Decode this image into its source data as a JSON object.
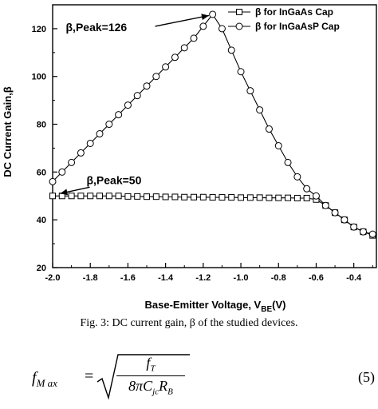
{
  "chart_data": {
    "type": "line",
    "xlabel_main": "Base-Emitter Voltage, V",
    "xlabel_sub": "BE",
    "xlabel_tail": "(V)",
    "ylabel": "DC Current Gain,β",
    "xlim": [
      -2.0,
      -0.28
    ],
    "ylim": [
      20,
      130
    ],
    "x_ticks": [
      -2.0,
      -1.8,
      -1.6,
      -1.4,
      -1.2,
      -1.0,
      -0.8,
      -0.6,
      -0.4
    ],
    "x_tick_labels": [
      "-2.0",
      "-1.8",
      "-1.6",
      "-1.4",
      "-1.2",
      "-1.0",
      "-0.8",
      "-0.6",
      "-0.4"
    ],
    "y_ticks": [
      20,
      40,
      60,
      80,
      100,
      120
    ],
    "y_tick_labels": [
      "20",
      "40",
      "60",
      "80",
      "100",
      "120"
    ],
    "legend_position": "top-right",
    "series": [
      {
        "name": "β for InGaAs Cap",
        "marker": "square",
        "x": [
          -2.0,
          -1.95,
          -1.9,
          -1.85,
          -1.8,
          -1.75,
          -1.7,
          -1.65,
          -1.6,
          -1.55,
          -1.5,
          -1.45,
          -1.4,
          -1.35,
          -1.3,
          -1.25,
          -1.2,
          -1.15,
          -1.1,
          -1.05,
          -1.0,
          -0.95,
          -0.9,
          -0.85,
          -0.8,
          -0.75,
          -0.7,
          -0.65,
          -0.6,
          -0.55,
          -0.5,
          -0.45,
          -0.4,
          -0.35,
          -0.3
        ],
        "y": [
          50,
          50,
          50,
          50,
          50,
          50,
          50,
          50,
          49.8,
          49.8,
          49.7,
          49.7,
          49.6,
          49.6,
          49.5,
          49.5,
          49.5,
          49.4,
          49.4,
          49.4,
          49.3,
          49.3,
          49.3,
          49.2,
          49.2,
          49.2,
          49.1,
          49.1,
          48.5,
          46,
          43,
          40,
          37,
          35,
          33.5
        ]
      },
      {
        "name": "β for InGaAsP Cap",
        "marker": "circle",
        "x": [
          -2.0,
          -1.95,
          -1.9,
          -1.85,
          -1.8,
          -1.75,
          -1.7,
          -1.65,
          -1.6,
          -1.55,
          -1.5,
          -1.45,
          -1.4,
          -1.35,
          -1.3,
          -1.25,
          -1.2,
          -1.15,
          -1.1,
          -1.05,
          -1.0,
          -0.95,
          -0.9,
          -0.85,
          -0.8,
          -0.75,
          -0.7,
          -0.65,
          -0.6,
          -0.55,
          -0.5,
          -0.45,
          -0.4,
          -0.35,
          -0.3
        ],
        "y": [
          56,
          60,
          64,
          68,
          72,
          76,
          80,
          84,
          88,
          92,
          96,
          100,
          104,
          108,
          112,
          116,
          121,
          126,
          120,
          111,
          102,
          94,
          86,
          78,
          71,
          64,
          58,
          53,
          50,
          46,
          43,
          40,
          37,
          35,
          34
        ]
      }
    ],
    "annotations": [
      {
        "text": "β,Peak=126",
        "x": -1.93,
        "y": 119,
        "arrow_to": [
          -1.17,
          125.5
        ]
      },
      {
        "text": "β,Peak=50",
        "x": -1.82,
        "y": 55,
        "arrow_to": [
          -1.96,
          51
        ]
      }
    ]
  },
  "caption": "Fig. 3: DC current gain, β of the studied devices.",
  "equation": {
    "lhs": "f",
    "lhs_sub": "M ax",
    "equals": "=",
    "num": "f",
    "num_sub": "T",
    "den_main": "8πC",
    "den_sub1": "jc",
    "den_r": "R",
    "den_sub2": "B",
    "number": "(5)"
  }
}
